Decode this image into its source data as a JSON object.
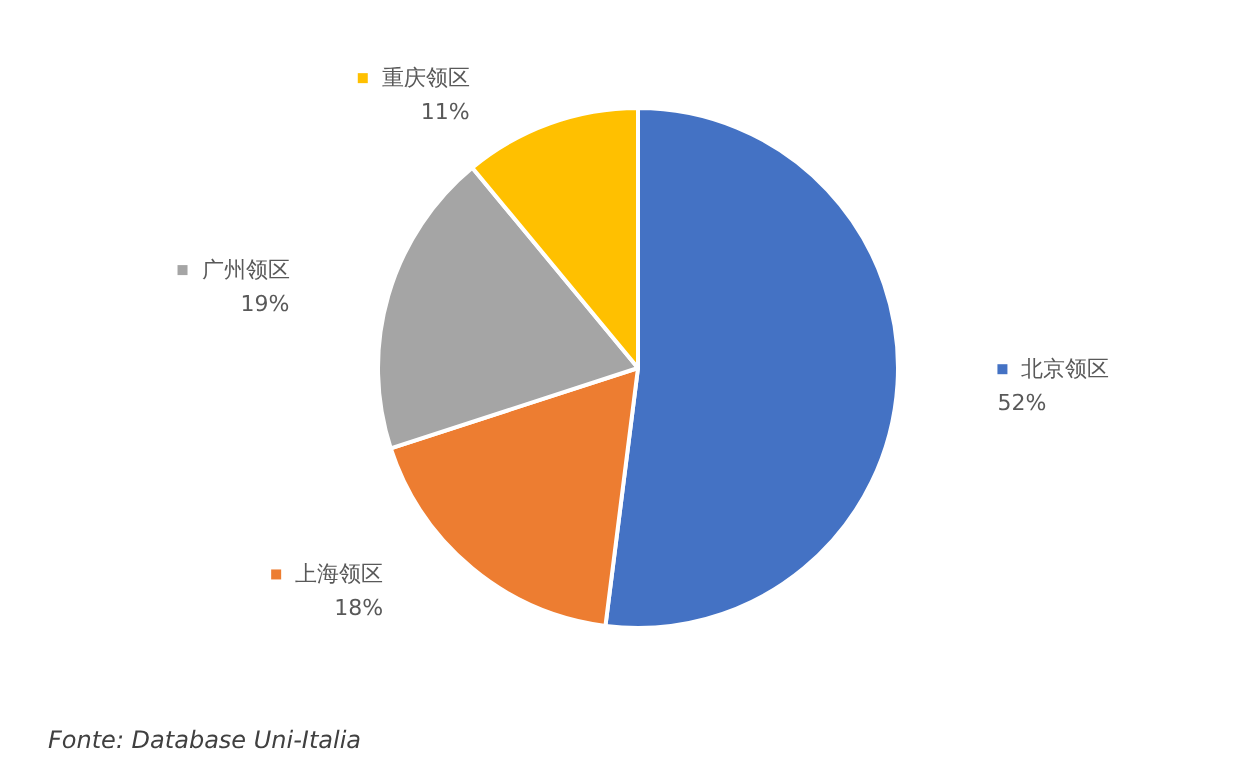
{
  "chart_data": {
    "type": "pie",
    "categories": [
      "北京领区",
      "上海领区",
      "广州领区",
      "重庆领区"
    ],
    "values": [
      52,
      18,
      19,
      11
    ],
    "colors": [
      "#4472c4",
      "#ed7d31",
      "#a5a5a5",
      "#ffc000"
    ],
    "value_labels": [
      "52%",
      "18%",
      "19%",
      "11%"
    ],
    "legend": true,
    "annotations": [
      "Fonte: Database Uni-Italia"
    ]
  }
}
